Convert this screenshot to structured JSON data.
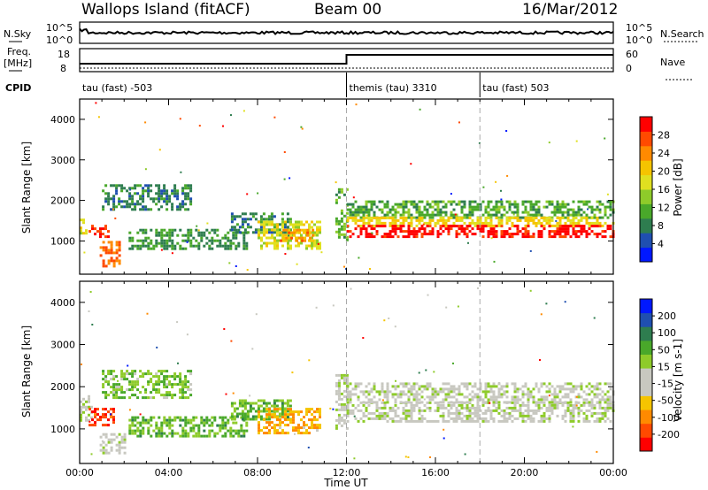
{
  "header": {
    "site": "Wallops Island (fitACF)",
    "beam": "Beam 00",
    "date": "16/Mar/2012"
  },
  "top_panels": {
    "nsky_label": "N.Sky",
    "nsky_ticks": [
      "10^5",
      "10^0"
    ],
    "nsearch_label": "N.Search",
    "nsearch_ticks": [
      "10^5",
      "10^0"
    ],
    "freq_label_1": "Freq.",
    "freq_label_2": "[MHz]",
    "freq_ticks": [
      "18",
      "8"
    ],
    "nave_label": "Nave",
    "nave_ticks": [
      "60",
      "0"
    ],
    "cpid_label": "CPID",
    "cpid_segments": [
      {
        "start": 0,
        "end": 12,
        "label": "tau (fast) -503"
      },
      {
        "start": 12,
        "end": 18,
        "label": "themis (tau) 3310"
      },
      {
        "start": 18,
        "end": 24,
        "label": "tau (fast) 503"
      }
    ]
  },
  "chart_data": [
    {
      "type": "heatmap",
      "title": "Power",
      "ylabel": "Slant Range [km]",
      "xlabel": "Time UT",
      "xlim": [
        0,
        24
      ],
      "ylim": [
        180,
        4500
      ],
      "yticks": [
        1000,
        2000,
        3000,
        4000
      ],
      "colorbar_label": "Power [dB]",
      "colorbar_ticks": [
        "4",
        "8",
        "12",
        "16",
        "20",
        "24",
        "28"
      ],
      "colorbar_colors": [
        "#0018ff",
        "#1f4fb0",
        "#2e7d4f",
        "#49a82a",
        "#8ecb2a",
        "#e0e020",
        "#f5c400",
        "#ff8a00",
        "#ff4a00",
        "#ff0000"
      ],
      "colorbar_range": [
        0,
        32
      ],
      "features": [
        {
          "t0": 0.0,
          "t1": 0.4,
          "r0": 1200,
          "r1": 1550,
          "lvl": 0.55
        },
        {
          "t0": 0.4,
          "t1": 1.3,
          "r0": 1100,
          "r1": 1400,
          "lvl": 0.9
        },
        {
          "t0": 0.9,
          "t1": 1.8,
          "r0": 400,
          "r1": 1000,
          "lvl": 0.8
        },
        {
          "t0": 1.0,
          "t1": 5.0,
          "r0": 1750,
          "r1": 2400,
          "lvl": 0.25
        },
        {
          "t0": 2.2,
          "t1": 7.5,
          "r0": 800,
          "r1": 1300,
          "lvl": 0.3
        },
        {
          "t0": 6.8,
          "t1": 9.5,
          "r0": 1200,
          "r1": 1700,
          "lvl": 0.25
        },
        {
          "t0": 8.0,
          "t1": 10.8,
          "r0": 800,
          "r1": 1500,
          "lvl": 0.55
        },
        {
          "t0": 9.0,
          "t1": 10.5,
          "r0": 1000,
          "r1": 1300,
          "lvl": 0.72
        },
        {
          "t0": 11.5,
          "t1": 12.0,
          "r0": 1000,
          "r1": 2300,
          "lvl": 0.35
        },
        {
          "t0": 12.0,
          "t1": 24.0,
          "r0": 1600,
          "r1": 2000,
          "lvl": 0.35
        },
        {
          "t0": 12.0,
          "t1": 24.0,
          "r0": 1400,
          "r1": 1600,
          "lvl": 0.6
        },
        {
          "t0": 12.0,
          "t1": 24.0,
          "r0": 1100,
          "r1": 1400,
          "lvl": 0.95
        }
      ]
    },
    {
      "type": "heatmap",
      "title": "Velocity",
      "ylabel": "Slant Range [km]",
      "xlabel": "Time UT",
      "xlim": [
        0,
        24
      ],
      "ylim": [
        180,
        4500
      ],
      "yticks": [
        1000,
        2000,
        3000,
        4000
      ],
      "xticks": [
        "00:00",
        "04:00",
        "08:00",
        "12:00",
        "16:00",
        "20:00",
        "00:00"
      ],
      "colorbar_label": "Velocity [m s-1]",
      "colorbar_ticks": [
        "-200",
        "-100",
        "-50",
        "-15",
        "15",
        "50",
        "100",
        "200"
      ],
      "colorbar_colors": [
        "#ff0000",
        "#ff4a00",
        "#ff8a00",
        "#f5c400",
        "#c8c8c0",
        "#c8c8c0",
        "#8ecb2a",
        "#49a82a",
        "#2e7d4f",
        "#1f4fb0",
        "#0018ff"
      ],
      "colorbar_range": [
        -250,
        250
      ],
      "features": [
        {
          "t0": 0.0,
          "t1": 0.5,
          "r0": 1200,
          "r1": 1800,
          "lvl": 0.5
        },
        {
          "t0": 0.4,
          "t1": 1.5,
          "r0": 1100,
          "r1": 1500,
          "lvl": 0.1
        },
        {
          "t0": 0.9,
          "t1": 2.0,
          "r0": 400,
          "r1": 900,
          "lvl": 0.5
        },
        {
          "t0": 1.0,
          "t1": 5.0,
          "r0": 1750,
          "r1": 2400,
          "lvl": 0.62
        },
        {
          "t0": 2.2,
          "t1": 7.5,
          "r0": 800,
          "r1": 1300,
          "lvl": 0.65
        },
        {
          "t0": 6.8,
          "t1": 9.5,
          "r0": 1200,
          "r1": 1700,
          "lvl": 0.65
        },
        {
          "t0": 8.0,
          "t1": 10.8,
          "r0": 900,
          "r1": 1500,
          "lvl": 0.28
        },
        {
          "t0": 11.5,
          "t1": 12.0,
          "r0": 1000,
          "r1": 2300,
          "lvl": 0.5
        },
        {
          "t0": 12.0,
          "t1": 24.0,
          "r0": 1150,
          "r1": 1650,
          "lvl": 0.5
        },
        {
          "t0": 12.0,
          "t1": 24.0,
          "r0": 1650,
          "r1": 2100,
          "lvl": 0.5
        }
      ]
    }
  ]
}
